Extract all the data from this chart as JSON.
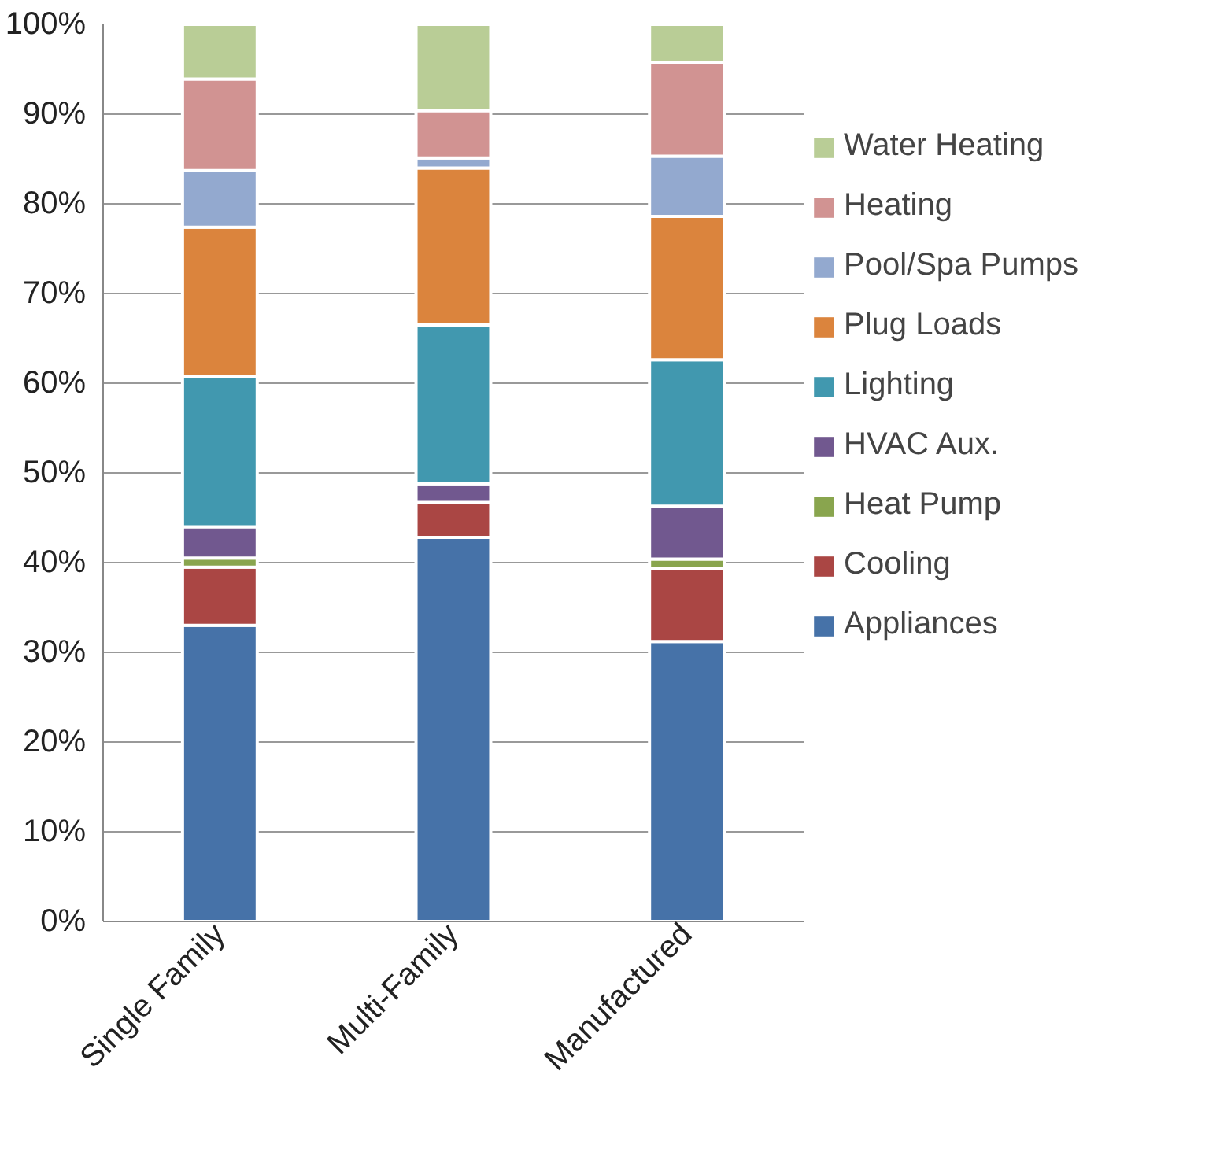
{
  "chart_data": {
    "type": "bar",
    "stacked": true,
    "categories": [
      "Single Family",
      "Multi-Family",
      "Manufactured"
    ],
    "series": [
      {
        "name": "Appliances",
        "color": "#4672a8",
        "values": [
          33.0,
          42.8,
          31.2
        ]
      },
      {
        "name": "Cooling",
        "color": "#aa4644",
        "values": [
          6.5,
          3.9,
          8.1
        ]
      },
      {
        "name": "Heat Pump",
        "color": "#89a54e",
        "values": [
          1.0,
          0.0,
          1.1
        ]
      },
      {
        "name": "HVAC Aux.",
        "color": "#71588f",
        "values": [
          3.5,
          2.1,
          5.9
        ]
      },
      {
        "name": "Lighting",
        "color": "#4198af",
        "values": [
          16.7,
          17.7,
          16.3
        ]
      },
      {
        "name": "Plug Loads",
        "color": "#db843d",
        "values": [
          16.7,
          17.5,
          16.0
        ]
      },
      {
        "name": "Pool/Spa Pumps",
        "color": "#93a9cf",
        "values": [
          6.3,
          1.1,
          6.7
        ]
      },
      {
        "name": "Heating",
        "color": "#d19392",
        "values": [
          10.2,
          5.3,
          10.5
        ]
      },
      {
        "name": "Water Heating",
        "color": "#b9cd96",
        "values": [
          6.1,
          9.6,
          4.2
        ]
      }
    ],
    "ylim": [
      0,
      100
    ],
    "yticks": [
      {
        "value": 0,
        "label": "0%"
      },
      {
        "value": 10,
        "label": "10%"
      },
      {
        "value": 20,
        "label": "20%"
      },
      {
        "value": 30,
        "label": "30%"
      },
      {
        "value": 40,
        "label": "40%"
      },
      {
        "value": 50,
        "label": "50%"
      },
      {
        "value": 60,
        "label": "60%"
      },
      {
        "value": 70,
        "label": "70%"
      },
      {
        "value": 80,
        "label": "80%"
      },
      {
        "value": 90,
        "label": "90%"
      },
      {
        "value": 100,
        "label": "100%"
      }
    ],
    "grid": "y",
    "legend": "right"
  }
}
